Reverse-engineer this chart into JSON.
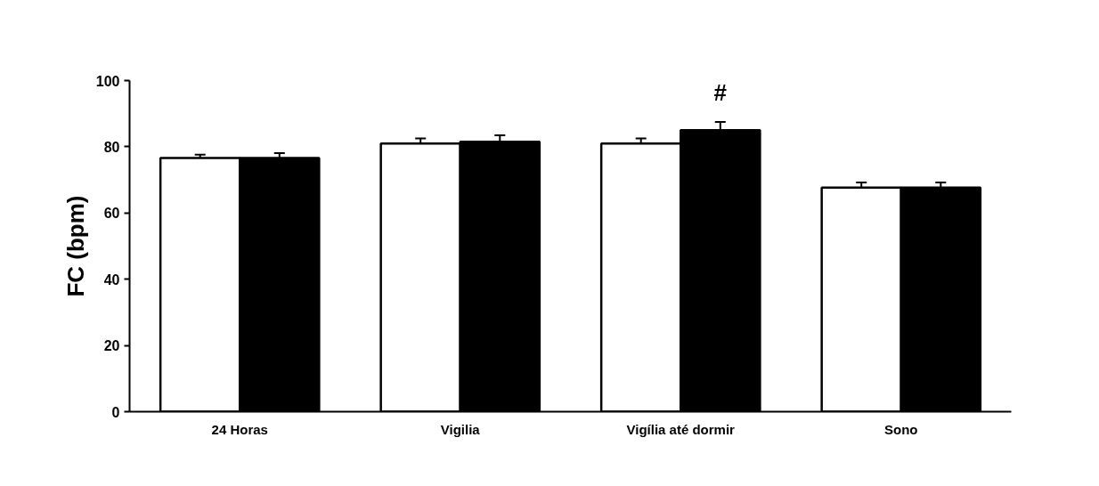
{
  "chart_data": {
    "type": "bar",
    "ylabel": "FC (bpm)",
    "categories": [
      "24 Horas",
      "Vigilia",
      "Vigília até dormir",
      "Sono"
    ],
    "series": [
      {
        "color": "#ffffff",
        "values": [
          76.6,
          81,
          81,
          67.7
        ],
        "errors": [
          1,
          1.5,
          1.5,
          1.5
        ]
      },
      {
        "color": "#000000",
        "values": [
          76.6,
          81.5,
          85,
          67.7
        ],
        "errors": [
          1.5,
          2,
          2.5,
          1.5
        ]
      }
    ],
    "annotations": [
      "#"
    ],
    "ylim": [
      0,
      100
    ],
    "yticks": [
      0,
      20,
      40,
      60,
      80,
      100
    ],
    "grid": false
  }
}
